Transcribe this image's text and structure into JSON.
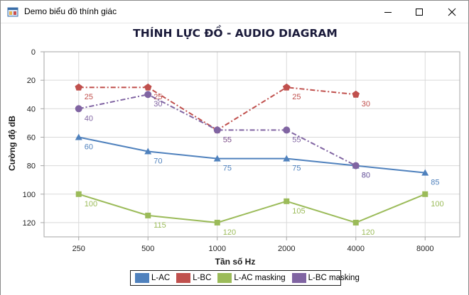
{
  "window": {
    "title": "Demo biểu đồ thính giác",
    "icons": {
      "app": "form-icon",
      "minimize": "minimize-icon",
      "maximize": "maximize-icon",
      "close": "close-icon"
    }
  },
  "chart_data": {
    "type": "line",
    "title": "THÍNH LỰC ĐỒ - AUDIO DIAGRAM",
    "xlabel": "Tần số Hz",
    "ylabel": "Cường độ dB",
    "categories": [
      "250",
      "500",
      "1000",
      "2000",
      "4000",
      "8000"
    ],
    "y_ticks": [
      "0",
      "20",
      "40",
      "60",
      "80",
      "100",
      "120"
    ],
    "ylim": [
      0,
      130
    ],
    "y_inverted": true,
    "grid": true,
    "legend_position": "bottom",
    "series": [
      {
        "name": "L-AC",
        "color": "#4f81bd",
        "marker": "triangle",
        "dash": "solid",
        "values": [
          60,
          70,
          75,
          75,
          80,
          85
        ],
        "labels": [
          "60",
          "70",
          "75",
          "75",
          "80",
          "85"
        ]
      },
      {
        "name": "L-BC",
        "color": "#c0504d",
        "marker": "pentagon",
        "dash": "dashdot",
        "values": [
          25,
          25,
          55,
          25,
          30,
          null
        ],
        "labels": [
          "25",
          "25",
          "55",
          "25",
          "30",
          ""
        ]
      },
      {
        "name": "L-AC masking",
        "color": "#9bbb59",
        "marker": "square",
        "dash": "solid",
        "values": [
          100,
          115,
          120,
          105,
          120,
          100
        ],
        "labels": [
          "100",
          "115",
          "120",
          "105",
          "120",
          "100"
        ]
      },
      {
        "name": "L-BC masking",
        "color": "#8064a2",
        "marker": "circle",
        "dash": "dashdot",
        "values": [
          40,
          30,
          55,
          55,
          80,
          null
        ],
        "labels": [
          "40",
          "30",
          "55",
          "55",
          "80",
          ""
        ]
      }
    ]
  }
}
